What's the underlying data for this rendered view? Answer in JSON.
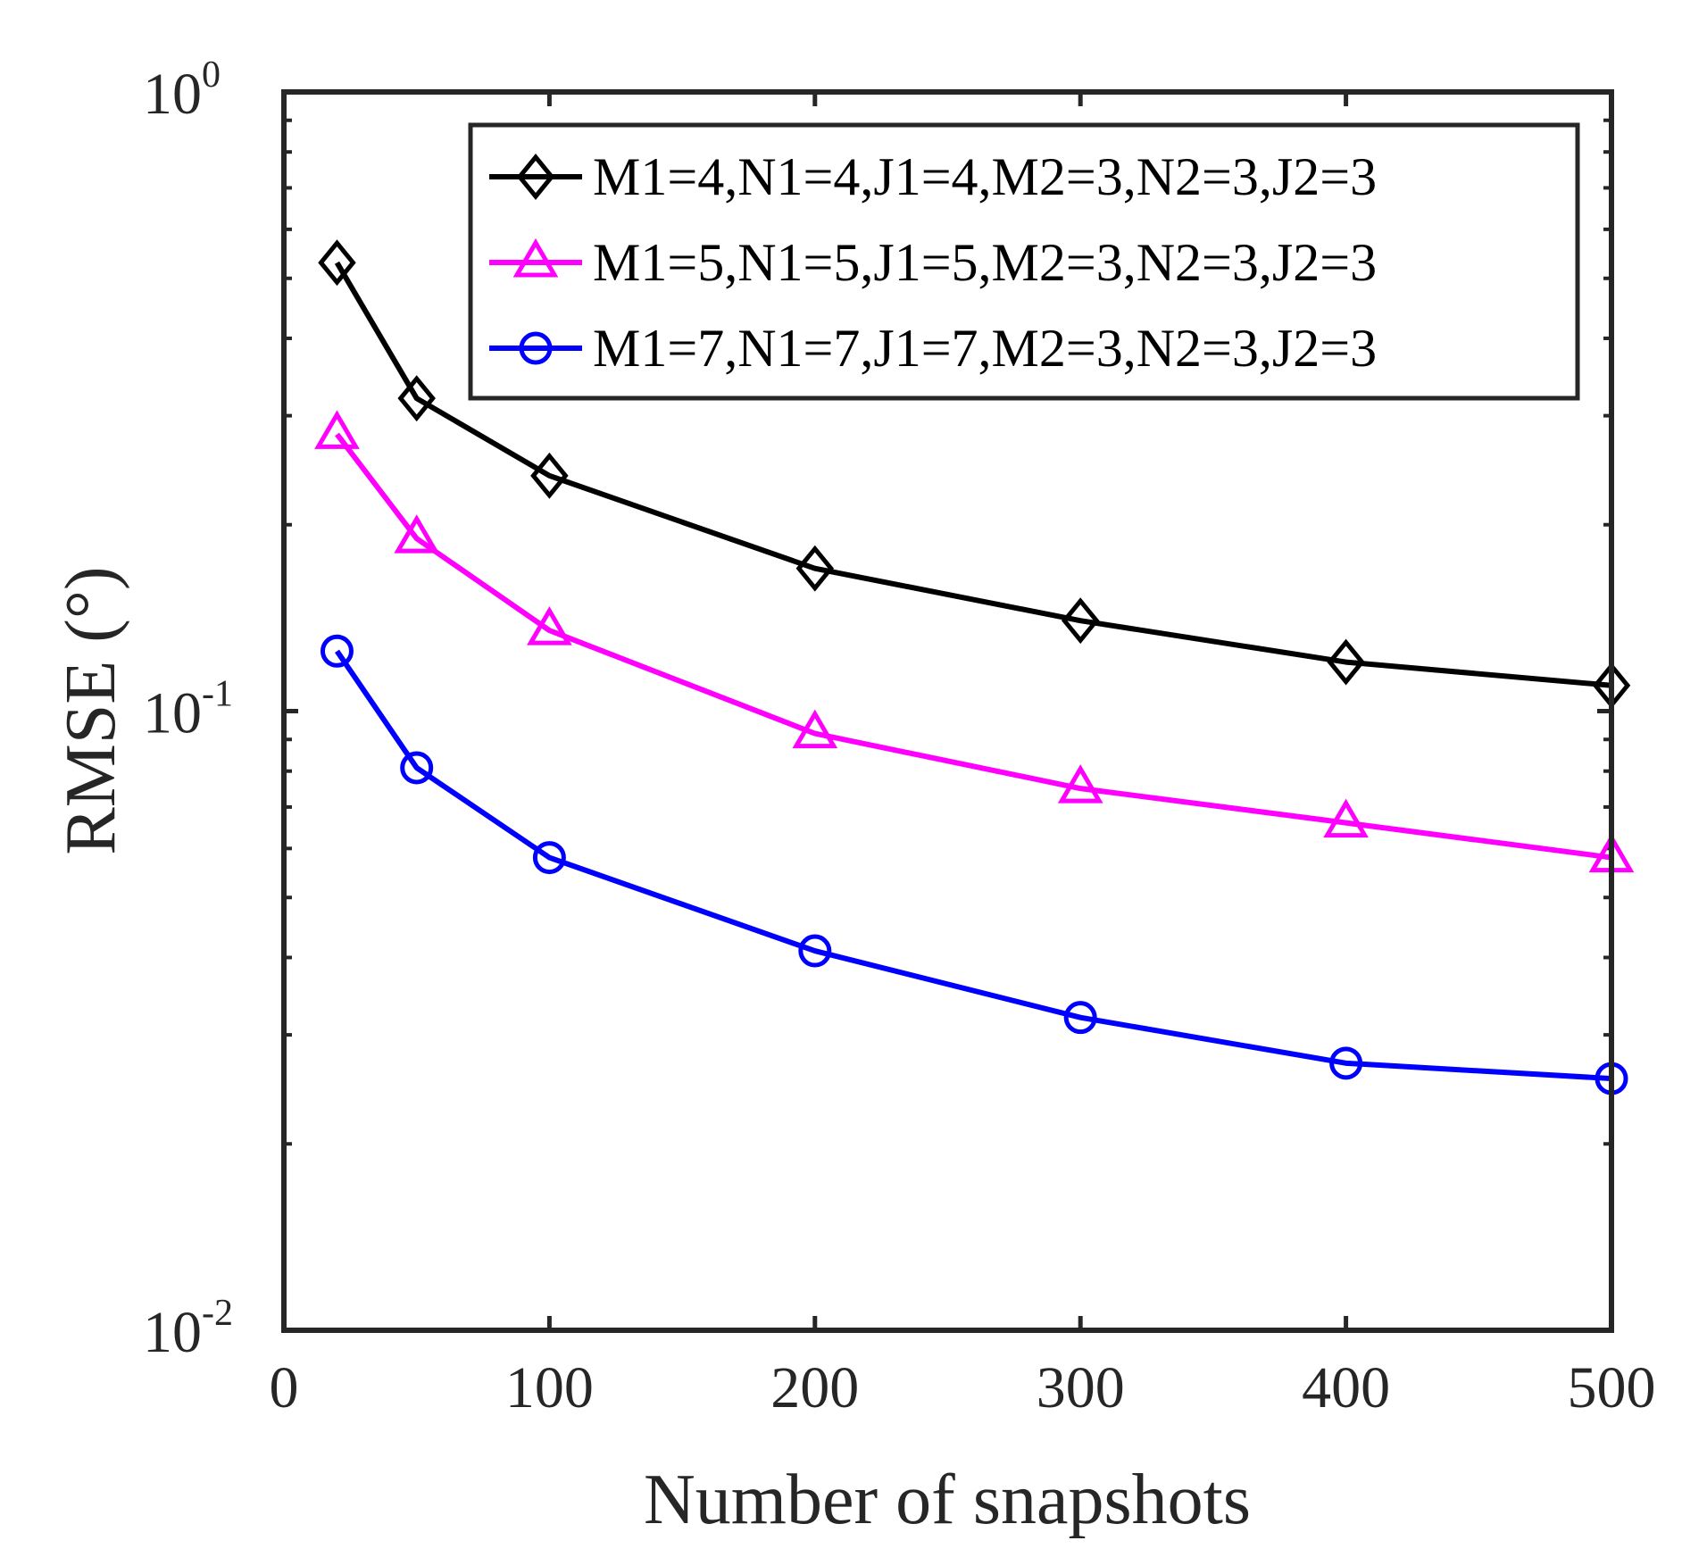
{
  "chart_data": {
    "type": "line",
    "title": "",
    "xlabel": "Number of snapshots",
    "ylabel": "RMSE (°)",
    "xlim": [
      0,
      500
    ],
    "ylim": [
      0.01,
      1
    ],
    "yscale": "log",
    "x": [
      20,
      50,
      100,
      200,
      300,
      400,
      500
    ],
    "xticks": [
      {
        "value": 0,
        "label": "0"
      },
      {
        "value": 100,
        "label": "100"
      },
      {
        "value": 200,
        "label": "200"
      },
      {
        "value": 300,
        "label": "300"
      },
      {
        "value": 400,
        "label": "400"
      },
      {
        "value": 500,
        "label": "500"
      }
    ],
    "yticks": [
      {
        "value": 0.01,
        "base": "10",
        "exp": "-2"
      },
      {
        "value": 0.1,
        "base": "10",
        "exp": "-1"
      },
      {
        "value": 1,
        "base": "10",
        "exp": "0"
      }
    ],
    "legend_position": "top-right",
    "series": [
      {
        "name": "M1=4,N1=4,J1=4,M2=3,N2=3,J2=3",
        "color": "#000000",
        "marker": "diamond",
        "values": [
          0.53,
          0.32,
          0.24,
          0.17,
          0.14,
          0.12,
          0.11
        ]
      },
      {
        "name": "M1=5,N1=5,J1=5,M2=3,N2=3,J2=3",
        "color": "#ff00ff",
        "marker": "triangle",
        "values": [
          0.28,
          0.19,
          0.135,
          0.092,
          0.075,
          0.066,
          0.058
        ]
      },
      {
        "name": "M1=7,N1=7,J1=7,M2=3,N2=3,J2=3",
        "color": "#0000ff",
        "marker": "circle",
        "values": [
          0.125,
          0.081,
          0.058,
          0.041,
          0.032,
          0.027,
          0.0255
        ]
      }
    ]
  }
}
